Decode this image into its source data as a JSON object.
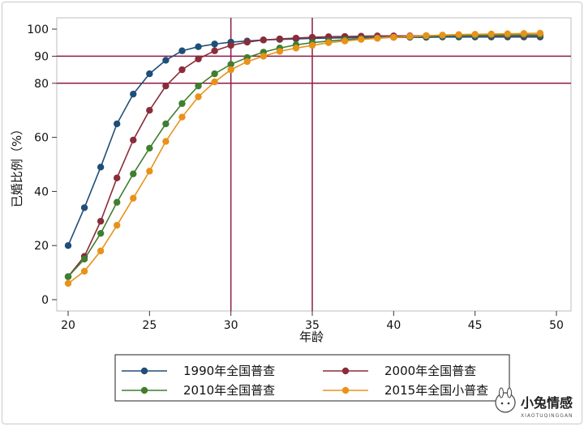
{
  "chart_data": {
    "type": "line",
    "xlabel": "年龄",
    "ylabel": "已婚比例（%）",
    "xlim": [
      20,
      50
    ],
    "ylim": [
      0,
      100
    ],
    "xticks": [
      "20",
      "25",
      "30",
      "35",
      "40",
      "45",
      "50"
    ],
    "yticks": [
      "0",
      "20",
      "40",
      "60",
      "80",
      "90",
      "100"
    ],
    "reference_lines": {
      "horizontal": [
        80,
        90
      ],
      "vertical": [
        30,
        35
      ],
      "color": "#8e1a45"
    },
    "legend_position": "bottom",
    "x": [
      20,
      21,
      22,
      23,
      24,
      25,
      26,
      27,
      28,
      29,
      30,
      31,
      32,
      33,
      34,
      35,
      36,
      37,
      38,
      39,
      40,
      41,
      42,
      43,
      44,
      45,
      46,
      47,
      48,
      49
    ],
    "series": [
      {
        "name": "1990年全国普查",
        "color": "#1f4e79",
        "values": [
          20,
          34,
          49,
          65,
          76,
          83.5,
          88.5,
          92,
          93.5,
          94.5,
          95.2,
          95.6,
          96,
          96.2,
          96.4,
          96.6,
          96.7,
          96.8,
          96.9,
          97,
          97,
          97,
          97,
          97.1,
          97.1,
          97.1,
          97.1,
          97.1,
          97.1,
          97.1
        ]
      },
      {
        "name": "2000年全国普查",
        "color": "#8b2c3a",
        "values": [
          8.5,
          16,
          29,
          45,
          59,
          70,
          79,
          85,
          89,
          92,
          94,
          95.2,
          96,
          96.4,
          96.7,
          97,
          97.2,
          97.3,
          97.4,
          97.5,
          97.5,
          97.5,
          97.6,
          97.6,
          97.6,
          97.6,
          97.6,
          97.6,
          97.6,
          97.6
        ]
      },
      {
        "name": "2010年全国普查",
        "color": "#3f7f2f",
        "values": [
          8.5,
          15,
          24.5,
          36,
          46.5,
          56,
          65,
          72.5,
          79,
          83.5,
          87,
          89.5,
          91.5,
          93,
          94.2,
          95,
          95.6,
          96.1,
          96.5,
          96.8,
          97,
          97.2,
          97.4,
          97.5,
          97.6,
          97.7,
          97.8,
          97.8,
          97.9,
          97.9
        ]
      },
      {
        "name": "2015年全国小普查",
        "color": "#e8921a",
        "values": [
          6,
          10.5,
          18,
          27.5,
          37.5,
          47.5,
          58.5,
          67.5,
          75,
          80.5,
          85,
          88,
          90,
          91.8,
          93,
          94,
          95,
          95.6,
          96.2,
          96.6,
          97,
          97.3,
          97.6,
          97.8,
          98,
          98.1,
          98.2,
          98.3,
          98.4,
          98.5
        ]
      }
    ]
  },
  "watermark": {
    "name": "小兔情感",
    "url_text": "XIAOTUQINGGAN"
  }
}
